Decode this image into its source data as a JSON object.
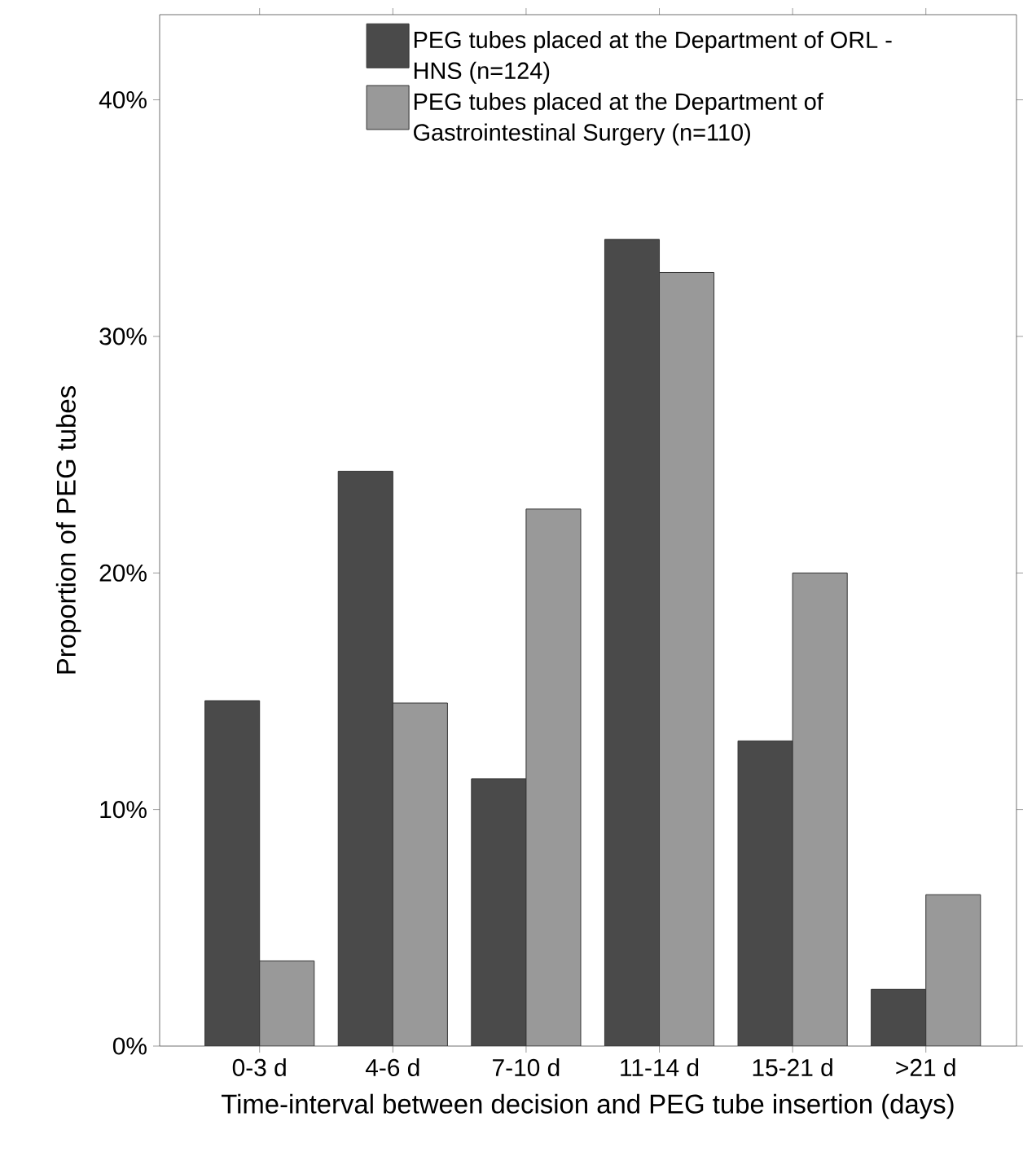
{
  "chart_data": {
    "type": "bar",
    "xlabel": "Time-interval between decision and PEG tube insertion (days)",
    "ylabel": "Proportion of PEG tubes",
    "categories": [
      "0-3 d",
      "4-6 d",
      "7-10 d",
      "11-14 d",
      "15-21 d",
      ">21 d"
    ],
    "series": [
      {
        "name": "PEG tubes placed at the Department of ORL - HNS (n=124)",
        "color": "#4a4a4a",
        "values": [
          14.6,
          24.3,
          11.3,
          34.1,
          12.9,
          2.4
        ]
      },
      {
        "name": "PEG tubes placed at the Department of Gastrointestinal Surgery (n=110)",
        "color": "#999999",
        "values": [
          3.6,
          14.5,
          22.7,
          32.7,
          20.0,
          6.4
        ]
      }
    ],
    "ylim": [
      0,
      43.6
    ],
    "yticks": [
      {
        "value": 0,
        "label": "0%"
      },
      {
        "value": 10,
        "label": "10%"
      },
      {
        "value": 20,
        "label": "20%"
      },
      {
        "value": 30,
        "label": "30%"
      },
      {
        "value": 40,
        "label": "40%"
      }
    ],
    "legend": "top",
    "grid": false
  }
}
